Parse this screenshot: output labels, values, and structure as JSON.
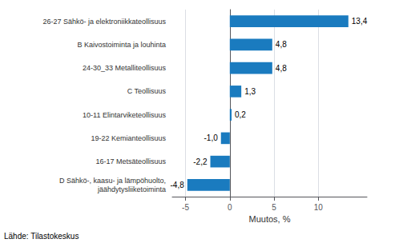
{
  "chart_data": {
    "type": "bar",
    "orientation": "horizontal",
    "categories": [
      "D Sähkö-, kaasu- ja lämpöhuolto,\njäähdytysliiketoiminta",
      "16-17 Metsäteollisuus",
      "19-22 Kemianteollisuus",
      "10-11 Elintarviketeollisuus",
      "C Teollisuus",
      "24-30_33 Metalliteollisuus",
      "B Kaivostoiminta ja louhinta",
      "26-27 Sähkö- ja elektroniikkateollisuus"
    ],
    "values": [
      -4.8,
      -2.2,
      -1.0,
      0.2,
      1.3,
      4.8,
      4.8,
      13.4
    ],
    "value_labels": [
      "-4,8",
      "-2,2",
      "-1,0",
      "0,2",
      "1,3",
      "4,8",
      "4,8",
      "13,4"
    ],
    "data_labels": true,
    "color": "#1a7bbf",
    "xlabel": "Muutos, %",
    "xlim": [
      -6.5,
      15.5
    ],
    "xticks": [
      -5,
      0,
      5,
      10
    ],
    "grid": true,
    "annotations": [
      "Lähde: Tilastokeskus"
    ]
  }
}
